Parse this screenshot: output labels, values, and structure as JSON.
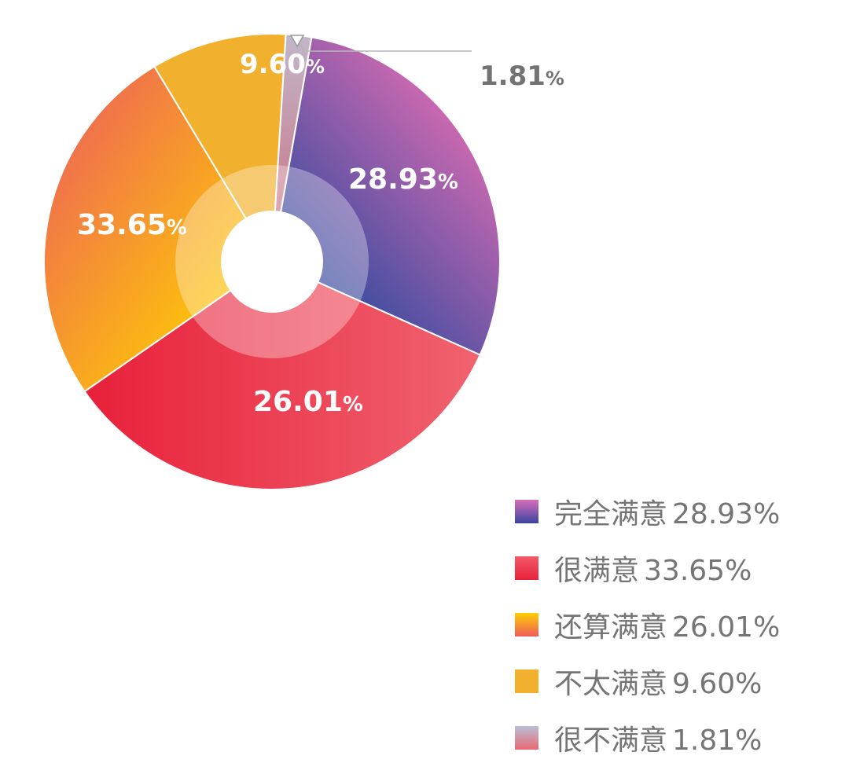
{
  "chart_data": {
    "type": "pie",
    "style": "donut",
    "slices": [
      {
        "label": "完全满意",
        "value": 28.93,
        "value_label": "28.93%",
        "legend_value": "28.93%",
        "colors": [
          "#E36DB3",
          "#3E4DA0"
        ],
        "swatch": [
          "#D86DBA",
          "#3A44A0"
        ]
      },
      {
        "label": "很满意",
        "value": 33.65,
        "value_label": "33.65%",
        "legend_value": "33.65%",
        "colors": [
          "#E8203A",
          "#F0636F"
        ],
        "swatch": [
          "#F25A6A",
          "#E8213A"
        ]
      },
      {
        "label": "还算满意",
        "value": 26.01,
        "value_label": "26.01%",
        "legend_value": "26.01%",
        "colors": [
          "#ED5F5A",
          "#FFD000"
        ],
        "swatch": [
          "#FFD000",
          "#EE5A5C"
        ]
      },
      {
        "label": "不太满意",
        "value": 9.6,
        "value_label": "9.60%",
        "legend_value": "9.60%",
        "colors": [
          "#F1B12F",
          "#F1B12F"
        ],
        "swatch": [
          "#F1B12F",
          "#F1B12F"
        ]
      },
      {
        "label": "很不满意",
        "value": 1.81,
        "value_label": "1.81%",
        "legend_value": "1.81%",
        "colors": [
          "#C1B7C9",
          "#C97A8C"
        ],
        "swatch": [
          "#B9BED4",
          "#E86A74"
        ]
      }
    ],
    "legend_position": "bottom-right"
  }
}
